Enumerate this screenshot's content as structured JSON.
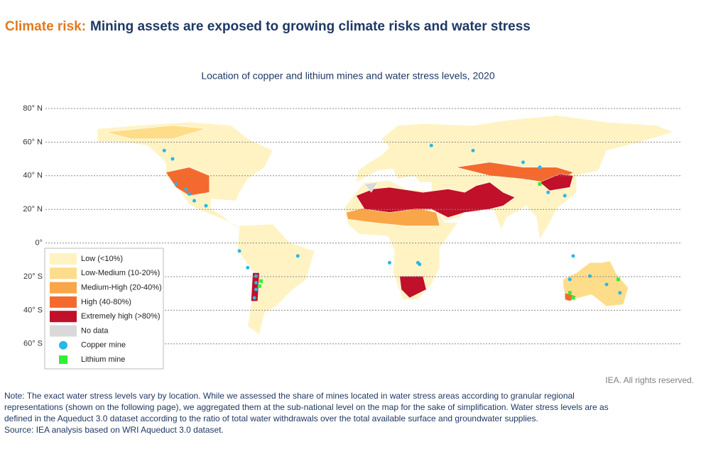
{
  "header": {
    "title_prefix": "Climate risk:",
    "title": "Mining assets are exposed to growing climate risks and water stress"
  },
  "map": {
    "subtitle": "Location of copper and lithium mines and water stress levels, 2020",
    "latitude_labels": [
      "80° N",
      "60° N",
      "40° N",
      "20° N",
      "0°",
      "20° S",
      "40° S",
      "60° S"
    ],
    "legend": [
      {
        "label": "Low (<10%)",
        "color": "#fff3c4"
      },
      {
        "label": "Low-Medium (10-20%)",
        "color": "#fedd8a"
      },
      {
        "label": "Medium-High (20-40%)",
        "color": "#f9a648"
      },
      {
        "label": "High (40-80%)",
        "color": "#f46a2e"
      },
      {
        "label": "Extremely high (>80%)",
        "color": "#c0102a"
      },
      {
        "label": "No data",
        "color": "#d9d9d9"
      },
      {
        "label": "Copper mine",
        "color": "#2ab7e8"
      },
      {
        "label": "Lithium mine",
        "color": "#33ee33"
      }
    ],
    "copyright": "IEA. All rights reserved."
  },
  "footer": {
    "note": [
      "Note: The exact water stress levels vary by location. While we assessed the share of mines located in water stress areas according to granular regional",
      "representations (shown on the following page), we aggregated them at the sub-national level on the map for the sake of simplification. Water stress levels are as",
      "defined in the Aqueduct 3.0 dataset according to the ratio of total water withdrawals over the total available surface and groundwater supplies."
    ],
    "source": "Source: IEA analysis based on WRI Aqueduct 3.0 dataset."
  }
}
